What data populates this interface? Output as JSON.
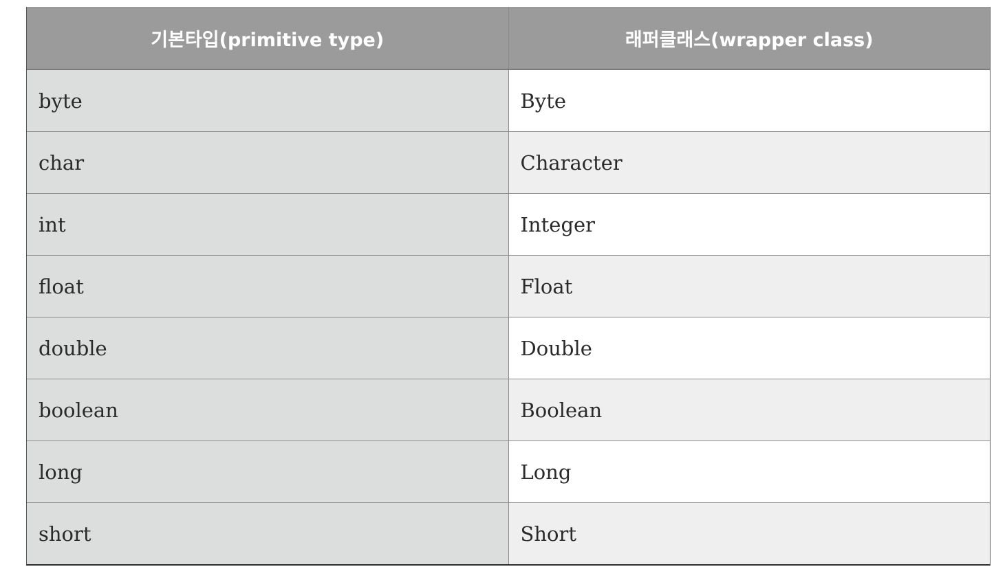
{
  "table": {
    "headers": {
      "primitive": "기본타입(primitive type)",
      "wrapper": "래퍼클래스(wrapper class)"
    },
    "rows": [
      {
        "primitive": "byte",
        "wrapper": "Byte"
      },
      {
        "primitive": "char",
        "wrapper": "Character"
      },
      {
        "primitive": "int",
        "wrapper": "Integer"
      },
      {
        "primitive": "float",
        "wrapper": "Float"
      },
      {
        "primitive": "double",
        "wrapper": "Double"
      },
      {
        "primitive": "boolean",
        "wrapper": "Boolean"
      },
      {
        "primitive": "long",
        "wrapper": "Long"
      },
      {
        "primitive": "short",
        "wrapper": "Short"
      }
    ]
  },
  "colors": {
    "header_bg": "#9b9b9b",
    "header_text": "#ffffff",
    "left_col_bg": "#dcdddd",
    "right_col_alt_bg": "#efefef"
  }
}
